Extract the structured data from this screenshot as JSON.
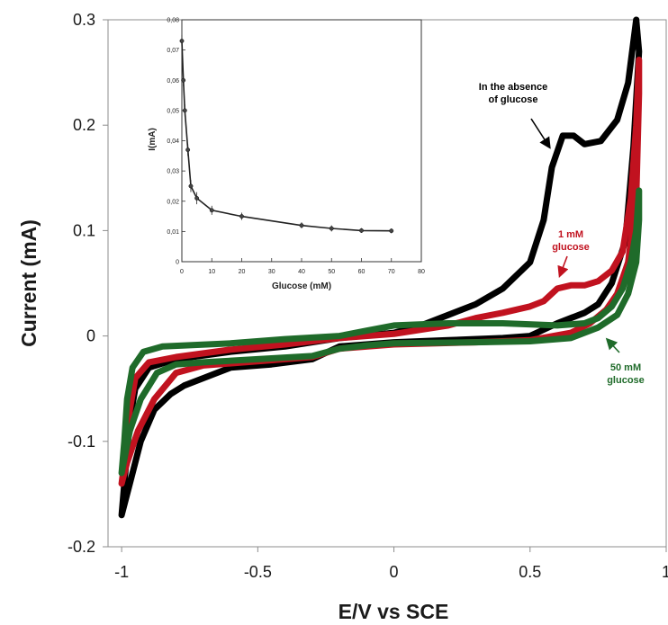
{
  "chart_data": [
    {
      "type": "line",
      "xlabel": "E/V vs SCE",
      "ylabel": "Current (mA)",
      "xlim": [
        -1.05,
        1.0
      ],
      "ylim": [
        -0.2,
        0.3
      ],
      "x_ticks": [
        -1,
        -0.5,
        0,
        0.5,
        1
      ],
      "y_ticks": [
        -0.2,
        -0.1,
        0,
        0.1,
        0.2,
        0.3
      ],
      "grid": false,
      "series": [
        {
          "name": "In the absence of glucose",
          "color": "#000000",
          "points": [
            [
              -1.0,
              -0.17
            ],
            [
              -0.99,
              -0.14
            ],
            [
              -0.97,
              -0.08
            ],
            [
              -0.95,
              -0.05
            ],
            [
              -0.9,
              -0.03
            ],
            [
              -0.8,
              -0.022
            ],
            [
              -0.6,
              -0.015
            ],
            [
              -0.4,
              -0.01
            ],
            [
              -0.2,
              -0.002
            ],
            [
              0.0,
              0.003
            ],
            [
              0.1,
              0.01
            ],
            [
              0.2,
              0.02
            ],
            [
              0.3,
              0.03
            ],
            [
              0.4,
              0.045
            ],
            [
              0.5,
              0.07
            ],
            [
              0.55,
              0.11
            ],
            [
              0.58,
              0.16
            ],
            [
              0.62,
              0.19
            ],
            [
              0.66,
              0.19
            ],
            [
              0.7,
              0.182
            ],
            [
              0.76,
              0.185
            ],
            [
              0.82,
              0.205
            ],
            [
              0.86,
              0.24
            ],
            [
              0.89,
              0.3
            ],
            [
              0.9,
              0.27
            ],
            [
              0.88,
              0.18
            ],
            [
              0.85,
              0.09
            ],
            [
              0.8,
              0.05
            ],
            [
              0.75,
              0.03
            ],
            [
              0.7,
              0.022
            ],
            [
              0.6,
              0.012
            ],
            [
              0.5,
              0.0
            ],
            [
              0.4,
              -0.002
            ],
            [
              0.2,
              -0.004
            ],
            [
              0.0,
              -0.006
            ],
            [
              -0.2,
              -0.01
            ],
            [
              -0.3,
              -0.022
            ],
            [
              -0.45,
              -0.027
            ],
            [
              -0.6,
              -0.03
            ],
            [
              -0.7,
              -0.04
            ],
            [
              -0.77,
              -0.047
            ],
            [
              -0.82,
              -0.055
            ],
            [
              -0.88,
              -0.07
            ],
            [
              -0.93,
              -0.1
            ],
            [
              -0.97,
              -0.14
            ],
            [
              -1.0,
              -0.17
            ]
          ]
        },
        {
          "name": "1 mM glucose",
          "color": "#c1121f",
          "points": [
            [
              -1.0,
              -0.14
            ],
            [
              -0.99,
              -0.12
            ],
            [
              -0.97,
              -0.07
            ],
            [
              -0.95,
              -0.04
            ],
            [
              -0.9,
              -0.025
            ],
            [
              -0.8,
              -0.02
            ],
            [
              -0.6,
              -0.013
            ],
            [
              -0.4,
              -0.008
            ],
            [
              -0.2,
              -0.002
            ],
            [
              0.0,
              0.002
            ],
            [
              0.2,
              0.01
            ],
            [
              0.3,
              0.017
            ],
            [
              0.4,
              0.022
            ],
            [
              0.5,
              0.028
            ],
            [
              0.55,
              0.033
            ],
            [
              0.6,
              0.045
            ],
            [
              0.65,
              0.048
            ],
            [
              0.7,
              0.048
            ],
            [
              0.75,
              0.052
            ],
            [
              0.8,
              0.062
            ],
            [
              0.84,
              0.08
            ],
            [
              0.87,
              0.13
            ],
            [
              0.89,
              0.2
            ],
            [
              0.9,
              0.262
            ],
            [
              0.9,
              0.23
            ],
            [
              0.89,
              0.13
            ],
            [
              0.86,
              0.07
            ],
            [
              0.82,
              0.04
            ],
            [
              0.78,
              0.025
            ],
            [
              0.72,
              0.012
            ],
            [
              0.65,
              0.003
            ],
            [
              0.5,
              -0.004
            ],
            [
              0.3,
              -0.006
            ],
            [
              0.0,
              -0.008
            ],
            [
              -0.2,
              -0.012
            ],
            [
              -0.3,
              -0.02
            ],
            [
              -0.5,
              -0.024
            ],
            [
              -0.7,
              -0.028
            ],
            [
              -0.8,
              -0.035
            ],
            [
              -0.88,
              -0.06
            ],
            [
              -0.94,
              -0.09
            ],
            [
              -0.98,
              -0.12
            ],
            [
              -1.0,
              -0.14
            ]
          ]
        },
        {
          "name": "50 mM glucose",
          "color": "#1f6b2a",
          "points": [
            [
              -1.0,
              -0.13
            ],
            [
              -0.99,
              -0.1
            ],
            [
              -0.98,
              -0.06
            ],
            [
              -0.96,
              -0.03
            ],
            [
              -0.92,
              -0.015
            ],
            [
              -0.85,
              -0.01
            ],
            [
              -0.6,
              -0.007
            ],
            [
              -0.4,
              -0.003
            ],
            [
              -0.2,
              0.0
            ],
            [
              -0.1,
              0.005
            ],
            [
              0.0,
              0.01
            ],
            [
              0.2,
              0.012
            ],
            [
              0.4,
              0.012
            ],
            [
              0.6,
              0.01
            ],
            [
              0.7,
              0.012
            ],
            [
              0.75,
              0.017
            ],
            [
              0.8,
              0.028
            ],
            [
              0.84,
              0.045
            ],
            [
              0.87,
              0.07
            ],
            [
              0.89,
              0.1
            ],
            [
              0.9,
              0.138
            ],
            [
              0.9,
              0.11
            ],
            [
              0.89,
              0.07
            ],
            [
              0.86,
              0.04
            ],
            [
              0.82,
              0.02
            ],
            [
              0.75,
              0.008
            ],
            [
              0.65,
              -0.002
            ],
            [
              0.5,
              -0.005
            ],
            [
              0.3,
              -0.006
            ],
            [
              0.0,
              -0.007
            ],
            [
              -0.1,
              -0.009
            ],
            [
              -0.2,
              -0.012
            ],
            [
              -0.3,
              -0.019
            ],
            [
              -0.5,
              -0.022
            ],
            [
              -0.7,
              -0.025
            ],
            [
              -0.8,
              -0.027
            ],
            [
              -0.87,
              -0.035
            ],
            [
              -0.93,
              -0.06
            ],
            [
              -0.97,
              -0.09
            ],
            [
              -1.0,
              -0.13
            ]
          ]
        }
      ],
      "annotations": [
        {
          "lines": [
            "In the absence",
            "of glucose"
          ],
          "color": "#000000"
        },
        {
          "lines": [
            "1 mM",
            "glucose"
          ],
          "color": "#c1121f"
        },
        {
          "lines": [
            "50 mM",
            "glucose"
          ],
          "color": "#1f6b2a"
        }
      ]
    },
    {
      "type": "line",
      "inset": true,
      "xlabel": "Glucose (mM)",
      "ylabel": "I(mA)",
      "xlim": [
        0,
        80
      ],
      "ylim": [
        0,
        0.08
      ],
      "x_ticks": [
        "0",
        "10",
        "20",
        "30",
        "40",
        "50",
        "60",
        "70",
        "80"
      ],
      "y_ticks": [
        "0",
        "0,01",
        "0,02",
        "0,03",
        "0,04",
        "0,05",
        "0,06",
        "0,07",
        "0,08"
      ],
      "x": [
        0,
        0.5,
        1,
        2,
        3,
        5,
        10,
        20,
        40,
        50,
        60,
        70
      ],
      "y": [
        0.073,
        0.06,
        0.05,
        0.037,
        0.025,
        0.021,
        0.017,
        0.015,
        0.012,
        0.011,
        0.0103,
        0.0102
      ],
      "error": [
        0.002,
        0.002,
        0.002,
        0.002,
        0.002,
        0.002,
        0.0015,
        0.0012,
        0.001,
        0.001,
        0.0008,
        0.0008
      ]
    }
  ]
}
